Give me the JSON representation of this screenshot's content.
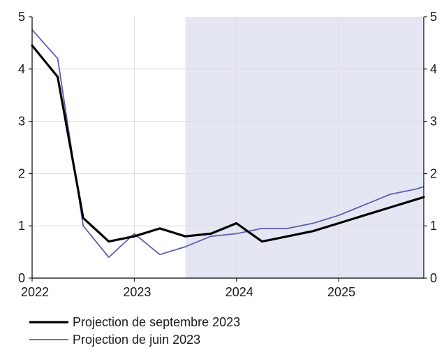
{
  "colors": {
    "projection_band": "#e4e6f3",
    "grid": "#ffffff",
    "frame": "#000000",
    "september": "#000000",
    "june": "#5a5fb0"
  },
  "chart_data": {
    "type": "line",
    "title": "",
    "xlabel": "",
    "ylabel": "",
    "xlim": [
      2022.0,
      2025.833
    ],
    "ylim": [
      0,
      5
    ],
    "x_ticks": [
      2022,
      2023,
      2024,
      2025
    ],
    "x_tick_labels": [
      "2022",
      "2023",
      "2024",
      "2025"
    ],
    "y_ticks": [
      0,
      1,
      2,
      3,
      4,
      5
    ],
    "y_tick_labels": [
      "0",
      "1",
      "2",
      "3",
      "4",
      "5"
    ],
    "right_axis": {
      "y_ticks": [
        0,
        1,
        2,
        3,
        4,
        5
      ],
      "y_tick_labels": [
        "0",
        "1",
        "2",
        "3",
        "4",
        "5"
      ]
    },
    "projection_shading": {
      "x_start": 2023.5,
      "x_end": 2025.833
    },
    "grid": true,
    "legend_position": "bottom-left",
    "series": [
      {
        "name": "Projection de septembre 2023",
        "color": "#000000",
        "x": [
          2022.0,
          2022.25,
          2022.5,
          2022.75,
          2023.0,
          2023.25,
          2023.5,
          2023.75,
          2024.0,
          2024.25,
          2024.5,
          2024.75,
          2025.0,
          2025.25,
          2025.5,
          2025.75,
          2025.833
        ],
        "values": [
          4.45,
          3.85,
          1.15,
          0.7,
          0.8,
          0.95,
          0.8,
          0.85,
          1.05,
          0.7,
          0.8,
          0.9,
          1.05,
          1.2,
          1.35,
          1.5,
          1.55
        ]
      },
      {
        "name": "Projection de juin 2023",
        "color": "#5a5fb0",
        "x": [
          2022.0,
          2022.25,
          2022.5,
          2022.75,
          2023.0,
          2023.25,
          2023.5,
          2023.75,
          2024.0,
          2024.25,
          2024.5,
          2024.75,
          2025.0,
          2025.25,
          2025.5,
          2025.75,
          2025.833
        ],
        "values": [
          4.75,
          4.2,
          1.0,
          0.4,
          0.85,
          0.45,
          0.6,
          0.8,
          0.85,
          0.95,
          0.95,
          1.05,
          1.2,
          1.4,
          1.6,
          1.7,
          1.75
        ]
      }
    ]
  }
}
